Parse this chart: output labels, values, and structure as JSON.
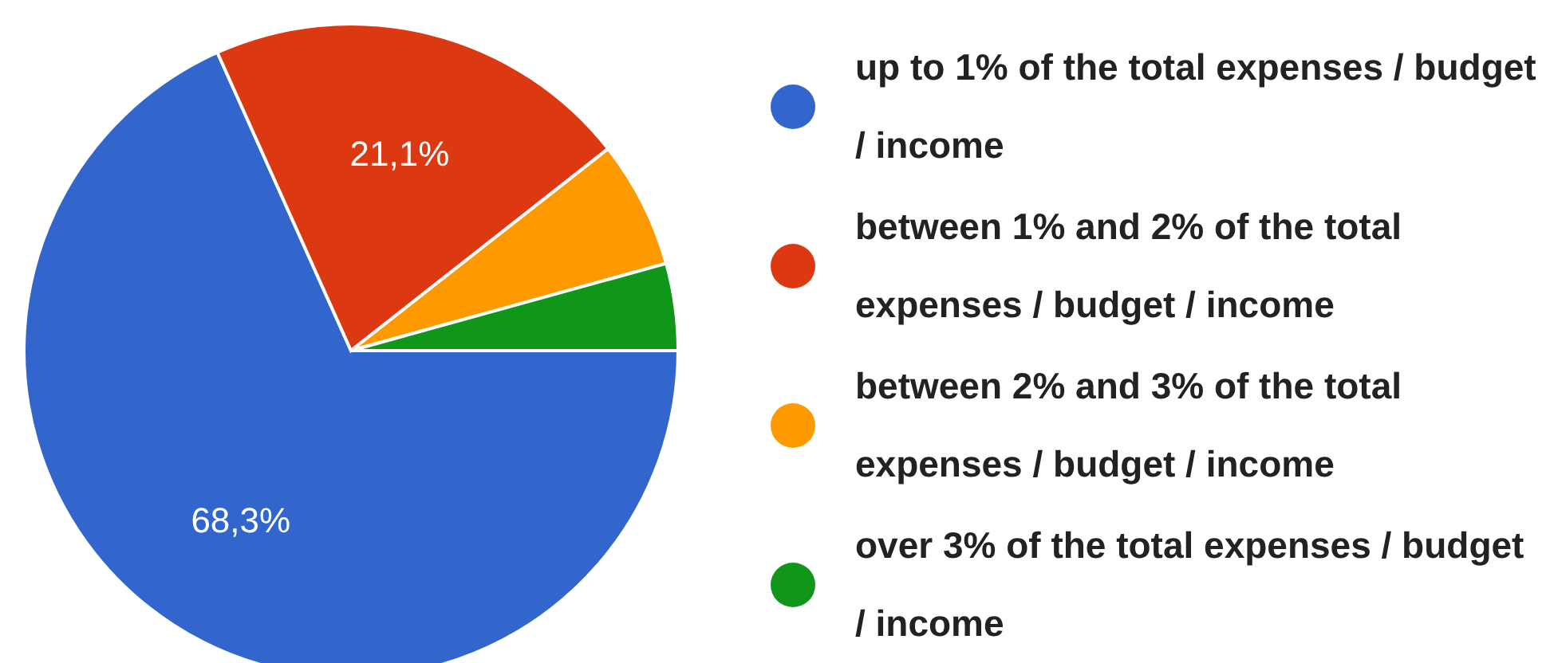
{
  "chart_data": {
    "type": "pie",
    "categories": [
      "up to 1% of the total expenses / budget / income",
      "between 1% and 2% of the total expenses / budget / income",
      "between 2% and 3% of the total expenses / budget / income",
      "over 3% of the total expenses / budget / income"
    ],
    "values": [
      68.3,
      21.1,
      6.3,
      4.3
    ],
    "colors": [
      "#3366cc",
      "#dc3912",
      "#ff9900",
      "#109618"
    ],
    "value_labels": [
      "68,3%",
      "21,1%",
      null,
      null
    ],
    "legend": "right"
  }
}
